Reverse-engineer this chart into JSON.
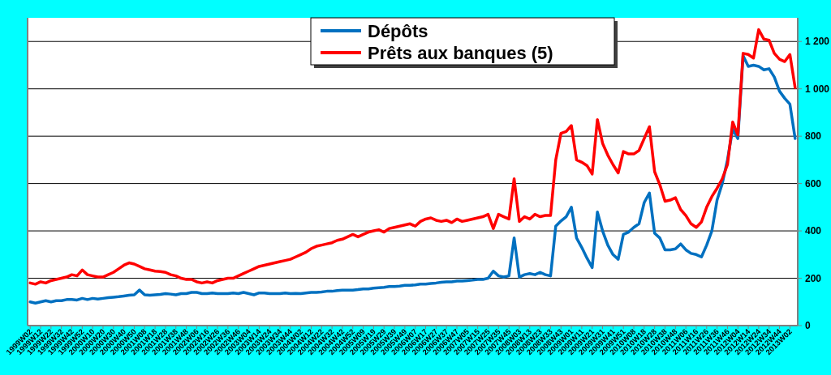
{
  "chart_data": {
    "type": "line",
    "categories": [
      "1999W02",
      null,
      "1999W12",
      null,
      "1999W22",
      null,
      "1999W32",
      null,
      "1999W42",
      null,
      "1999W52",
      null,
      "2000W10",
      null,
      "2000W20",
      null,
      "2000W30",
      null,
      "2000W40",
      null,
      "2000W50",
      null,
      "2001W08",
      null,
      "2001W18",
      null,
      "2001W28",
      null,
      "2001W38",
      null,
      "2001W48",
      null,
      "2002W06",
      null,
      "2002W16",
      null,
      "2002W26",
      null,
      "2002W36",
      null,
      "2002W46",
      null,
      "2003W04",
      null,
      "2003W14",
      null,
      "2003W24",
      null,
      "2003W34",
      null,
      "2003W44",
      null,
      "2004W02",
      null,
      "2004W12",
      null,
      "2004W22",
      null,
      "2004W32",
      null,
      "2004W42",
      null,
      "2004W52",
      null,
      "2005W09",
      null,
      "2005W19",
      null,
      "2005W29",
      null,
      "2005W39",
      null,
      "2005W49",
      null,
      "2006W07",
      null,
      "2006W17",
      null,
      "2006W27",
      null,
      "2006W37",
      null,
      "2006W47",
      null,
      "2007W05",
      null,
      "2007W15",
      null,
      "2007W25",
      null,
      "2007W35",
      null,
      "2007W45",
      null,
      "2008W03",
      null,
      "2008W13",
      null,
      "2008W23",
      null,
      "2008W33",
      null,
      "2008W43",
      null,
      "2009W01",
      null,
      "2009W11",
      null,
      "2009W21",
      null,
      "2009W31",
      null,
      "2009W41",
      null,
      "2009W51",
      null,
      "2010W08",
      null,
      "2010W18",
      null,
      "2010W28",
      null,
      "2010W38",
      null,
      "2010W48",
      null,
      "2011W06",
      null,
      "2011W16",
      null,
      "2011W26",
      null,
      "2011W36",
      null,
      "2011W46",
      null,
      "2012W04",
      null,
      "2012W14",
      null,
      "2012W24",
      null,
      "2012W34",
      null,
      "2012W44",
      null,
      "2013W02",
      null
    ],
    "series": [
      {
        "name": "Dépôts",
        "color": "#0070c0",
        "values": [
          100,
          95,
          100,
          105,
          100,
          105,
          105,
          110,
          110,
          108,
          115,
          110,
          115,
          112,
          115,
          118,
          120,
          122,
          125,
          128,
          130,
          150,
          130,
          128,
          130,
          132,
          135,
          133,
          130,
          135,
          135,
          140,
          140,
          135,
          135,
          138,
          135,
          135,
          135,
          138,
          135,
          140,
          135,
          130,
          138,
          138,
          135,
          135,
          135,
          138,
          135,
          136,
          135,
          138,
          140,
          140,
          142,
          145,
          145,
          148,
          150,
          150,
          150,
          152,
          155,
          155,
          158,
          160,
          162,
          165,
          165,
          167,
          170,
          170,
          172,
          175,
          175,
          178,
          180,
          183,
          185,
          185,
          188,
          188,
          190,
          192,
          195,
          195,
          200,
          230,
          210,
          205,
          210,
          370,
          205,
          215,
          220,
          215,
          225,
          215,
          210,
          420,
          442,
          460,
          500,
          370,
          330,
          285,
          245,
          480,
          400,
          340,
          300,
          280,
          385,
          395,
          415,
          430,
          520,
          560,
          390,
          370,
          320,
          320,
          324,
          345,
          320,
          305,
          300,
          290,
          340,
          400,
          530,
          600,
          700,
          830,
          790,
          1140,
          1095,
          1100,
          1095,
          1080,
          1085,
          1050,
          990,
          960,
          935,
          790
        ]
      },
      {
        "name": "Prêts aux banques (5)",
        "color": "#ff0000",
        "values": [
          180,
          175,
          185,
          180,
          190,
          195,
          200,
          205,
          215,
          210,
          235,
          215,
          210,
          205,
          205,
          215,
          225,
          240,
          255,
          265,
          260,
          250,
          240,
          235,
          230,
          228,
          225,
          215,
          210,
          200,
          195,
          195,
          185,
          180,
          185,
          180,
          190,
          195,
          200,
          200,
          210,
          220,
          230,
          240,
          250,
          255,
          260,
          265,
          270,
          275,
          280,
          290,
          300,
          310,
          325,
          335,
          340,
          345,
          350,
          360,
          365,
          375,
          385,
          375,
          385,
          395,
          400,
          405,
          395,
          410,
          415,
          420,
          425,
          430,
          420,
          440,
          450,
          455,
          445,
          440,
          445,
          435,
          450,
          440,
          445,
          450,
          455,
          460,
          470,
          410,
          470,
          460,
          450,
          620,
          440,
          460,
          450,
          470,
          460,
          465,
          465,
          700,
          812,
          820,
          845,
          700,
          690,
          676,
          640,
          870,
          770,
          720,
          680,
          645,
          735,
          725,
          725,
          740,
          790,
          840,
          650,
          595,
          525,
          530,
          540,
          490,
          465,
          430,
          415,
          438,
          500,
          545,
          580,
          620,
          680,
          860,
          805,
          1150,
          1145,
          1130,
          1250,
          1210,
          1205,
          1150,
          1125,
          1115,
          1145,
          1005
        ]
      }
    ],
    "ylim": [
      0,
      1300
    ],
    "yticks": [
      0,
      200,
      400,
      600,
      800,
      {
        "value": 1000,
        "label": "1 000"
      },
      {
        "value": 1200,
        "label": "1 200"
      }
    ],
    "grid": "y",
    "legend": "top",
    "marker": "none",
    "line_style": "solid"
  }
}
